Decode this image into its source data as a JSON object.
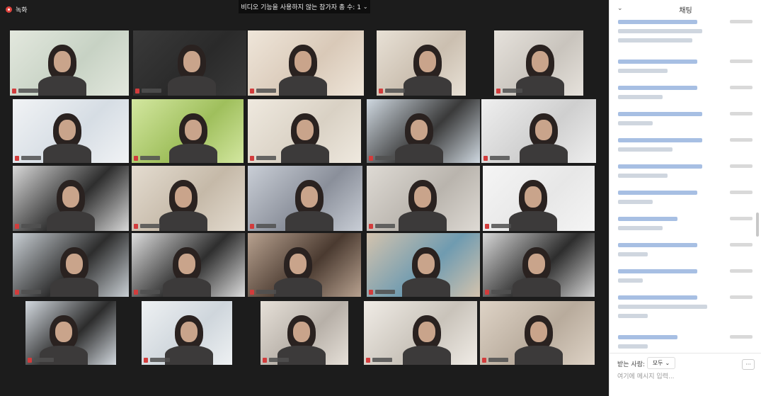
{
  "recording": {
    "label": "녹화"
  },
  "banner": {
    "text": "비디오 기능을 사용하지 않는 참가자 총 수: 1",
    "chevron": "⌄"
  },
  "chat": {
    "title": "채팅",
    "collapse_icon": "⌄",
    "to_label": "받는 사람:",
    "to_value": "모두",
    "to_chevron": "⌄",
    "more_label": "···",
    "input_placeholder": "여기에 메시지 입력..."
  },
  "colors": {
    "active_speaker": "#9bbf3a",
    "mic_muted": "#d23c3c",
    "chat_sender": "#a7bfe3"
  }
}
